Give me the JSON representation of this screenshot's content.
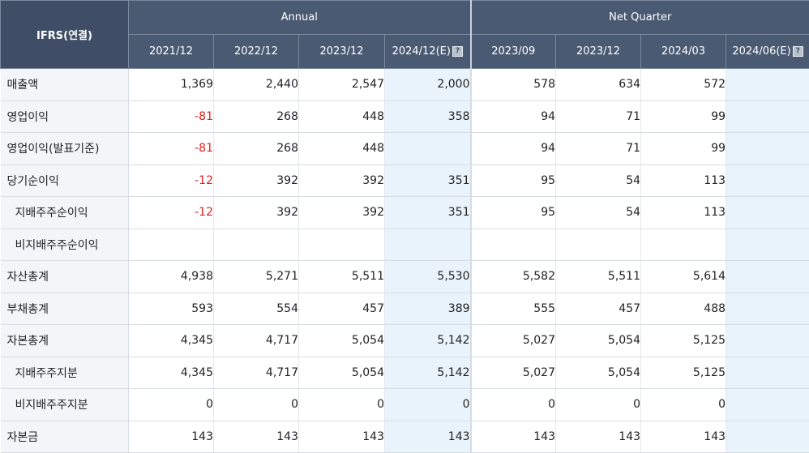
{
  "table": {
    "corner_label": "IFRS(연결)",
    "groups": {
      "annual": "Annual",
      "quarter": "Net Quarter"
    },
    "annual_periods": [
      {
        "label": "2021/12",
        "est": false
      },
      {
        "label": "2022/12",
        "est": false
      },
      {
        "label": "2023/12",
        "est": false
      },
      {
        "label": "2024/12(E)",
        "est": true
      }
    ],
    "quarter_periods": [
      {
        "label": "2023/09",
        "est": false
      },
      {
        "label": "2023/12",
        "est": false
      },
      {
        "label": "2024/03",
        "est": false
      },
      {
        "label": "2024/06(E)",
        "est": true
      }
    ],
    "rows": [
      {
        "label": "매출액",
        "indent": false,
        "values": [
          "1,369",
          "2,440",
          "2,547",
          "2,000",
          "578",
          "634",
          "572",
          ""
        ]
      },
      {
        "label": "영업이익",
        "indent": false,
        "values": [
          "-81",
          "268",
          "448",
          "358",
          "94",
          "71",
          "99",
          ""
        ]
      },
      {
        "label": "영업이익(발표기준)",
        "indent": false,
        "values": [
          "-81",
          "268",
          "448",
          "",
          "94",
          "71",
          "99",
          ""
        ]
      },
      {
        "label": "당기순이익",
        "indent": false,
        "values": [
          "-12",
          "392",
          "392",
          "351",
          "95",
          "54",
          "113",
          ""
        ]
      },
      {
        "label": "지배주주순이익",
        "indent": true,
        "values": [
          "-12",
          "392",
          "392",
          "351",
          "95",
          "54",
          "113",
          ""
        ]
      },
      {
        "label": "비지배주주순이익",
        "indent": true,
        "values": [
          "",
          "",
          "",
          "",
          "",
          "",
          "",
          ""
        ]
      },
      {
        "label": "자산총계",
        "indent": false,
        "values": [
          "4,938",
          "5,271",
          "5,511",
          "5,530",
          "5,582",
          "5,511",
          "5,614",
          ""
        ]
      },
      {
        "label": "부채총계",
        "indent": false,
        "values": [
          "593",
          "554",
          "457",
          "389",
          "555",
          "457",
          "488",
          ""
        ]
      },
      {
        "label": "자본총계",
        "indent": false,
        "values": [
          "4,345",
          "4,717",
          "5,054",
          "5,142",
          "5,027",
          "5,054",
          "5,125",
          ""
        ]
      },
      {
        "label": "지배주주지분",
        "indent": true,
        "values": [
          "4,345",
          "4,717",
          "5,054",
          "5,142",
          "5,027",
          "5,054",
          "5,125",
          ""
        ]
      },
      {
        "label": "비지배주주지분",
        "indent": true,
        "values": [
          "0",
          "0",
          "0",
          "0",
          "0",
          "0",
          "0",
          ""
        ]
      },
      {
        "label": "자본금",
        "indent": false,
        "values": [
          "143",
          "143",
          "143",
          "143",
          "143",
          "143",
          "143",
          ""
        ]
      }
    ],
    "estimate_icon": "question-mark-icon",
    "colors": {
      "header_bg": "#4a5a72",
      "label_bg": "#f3f5f8",
      "estimate_bg": "#e9f3fb",
      "negative": "#e02020"
    }
  }
}
